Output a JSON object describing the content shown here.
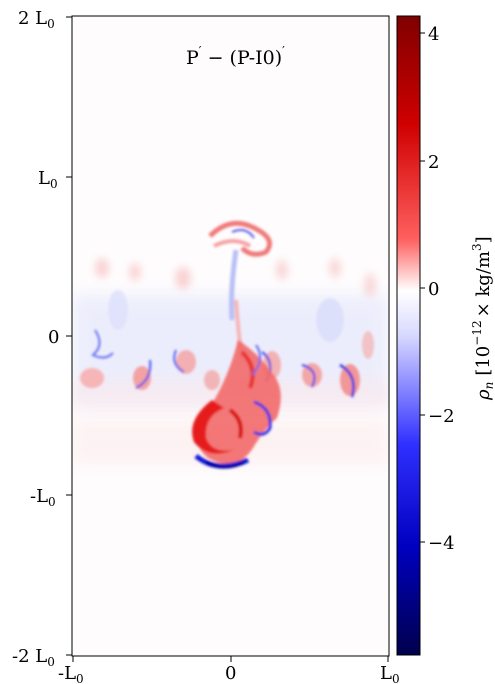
{
  "panel": {
    "title_parts": {
      "lhs": "P",
      "prime": "′",
      "minus": " − ",
      "rhs": "(P-I0)",
      "prime2": "′"
    }
  },
  "axes": {
    "y_ticks": [
      "2 L",
      "L",
      "0",
      "-L",
      "-2 L"
    ],
    "y_tick_subs": [
      "0",
      "0",
      "",
      "0",
      "0"
    ],
    "x_ticks": [
      "-L",
      "0",
      "L"
    ],
    "x_tick_subs": [
      "0",
      "",
      "0"
    ]
  },
  "colorbar": {
    "cmap": "seismic",
    "range": [
      -5.6,
      4.3
    ],
    "ticks": [
      "4",
      "2",
      "0",
      "−2",
      "−4"
    ],
    "tick_values": [
      4,
      2,
      0,
      -2,
      -4
    ],
    "label_var": "ρ",
    "label_sub": "n",
    "label_unit": "[10",
    "label_exp": "−12",
    "label_rest": "× kg/m",
    "label_exp2": "3",
    "label_close": "]"
  },
  "colors": {
    "positive_max": "#800000",
    "positive": "#ff0000",
    "zero": "#ffffff",
    "negative": "#0000ff",
    "negative_max": "#00004c"
  }
}
